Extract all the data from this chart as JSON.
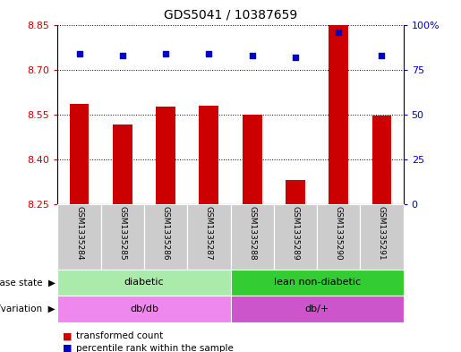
{
  "title": "GDS5041 / 10387659",
  "samples": [
    "GSM1335284",
    "GSM1335285",
    "GSM1335286",
    "GSM1335287",
    "GSM1335288",
    "GSM1335289",
    "GSM1335290",
    "GSM1335291"
  ],
  "bar_values": [
    8.585,
    8.515,
    8.575,
    8.578,
    8.548,
    8.33,
    8.86,
    8.547
  ],
  "percentile_values": [
    84,
    83,
    84,
    84,
    83,
    82,
    96,
    83
  ],
  "ylim_left": [
    8.25,
    8.85
  ],
  "ylim_right": [
    0,
    100
  ],
  "yticks_left": [
    8.25,
    8.4,
    8.55,
    8.7,
    8.85
  ],
  "yticks_right": [
    0,
    25,
    50,
    75,
    100
  ],
  "ytick_labels_right": [
    "0",
    "25",
    "50",
    "75",
    "100%"
  ],
  "bar_color": "#cc0000",
  "dot_color": "#0000cc",
  "disease_state_groups": [
    {
      "label": "diabetic",
      "start": 0,
      "end": 4,
      "color": "#aaeaaa"
    },
    {
      "label": "lean non-diabetic",
      "start": 4,
      "end": 8,
      "color": "#33cc33"
    }
  ],
  "genotype_groups": [
    {
      "label": "db/db",
      "start": 0,
      "end": 4,
      "color": "#ee88ee"
    },
    {
      "label": "db/+",
      "start": 4,
      "end": 8,
      "color": "#cc55cc"
    }
  ],
  "legend_items": [
    {
      "label": "transformed count",
      "color": "#cc0000"
    },
    {
      "label": "percentile rank within the sample",
      "color": "#0000cc"
    }
  ],
  "row_labels": [
    "disease state",
    "genotype/variation"
  ],
  "sample_bg_color": "#cccccc",
  "background_color": "#ffffff",
  "tick_label_color_left": "#cc0000",
  "tick_label_color_right": "#0000cc",
  "figsize": [
    5.15,
    3.93
  ],
  "dpi": 100
}
